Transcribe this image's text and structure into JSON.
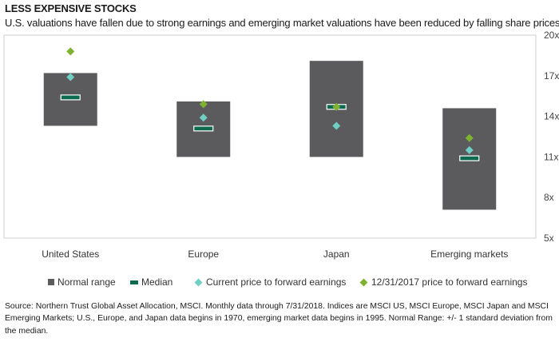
{
  "title": "LESS EXPENSIVE STOCKS",
  "subtitle": "U.S. valuations have fallen due to strong earnings and emerging market valuations have been reduced by falling share prices",
  "chart_data": {
    "type": "box",
    "categories": [
      "United States",
      "Europe",
      "Japan",
      "Emerging markets"
    ],
    "y_ticks": [
      "5x",
      "8x",
      "11x",
      "14x",
      "17x",
      "20x"
    ],
    "ylim": [
      5,
      20
    ],
    "grid": false,
    "legend_position": "bottom",
    "series": [
      {
        "name": "Normal range",
        "low": [
          13.3,
          11.0,
          11.0,
          7.1
        ],
        "high": [
          17.2,
          15.1,
          18.1,
          14.6
        ]
      },
      {
        "name": "Median",
        "values": [
          15.4,
          13.1,
          14.7,
          10.9
        ]
      },
      {
        "name": "Current price to forward earnings",
        "values": [
          16.9,
          13.9,
          13.3,
          11.5
        ]
      },
      {
        "name": "12/31/2017 price to forward earnings",
        "values": [
          18.8,
          14.9,
          14.7,
          12.4
        ]
      }
    ],
    "colors": {
      "range": "#5b5b5d",
      "median": "#0f6b4f",
      "current": "#6fcfc4",
      "dec2017": "#7fb231"
    }
  },
  "legend": {
    "range": "Normal range",
    "median": "Median",
    "current": "Current price to forward earnings",
    "dec2017": "12/31/2017 price to forward earnings"
  },
  "source": "Source: Northern Trust Global Asset Allocation, MSCI. Monthly data through 7/31/2018. Indices are MSCI US, MSCI Europe, MSCI Japan and MSCI Emerging Markets; U.S., Europe, and Japan data begins in 1970, emerging market data begins in 1995. Normal Range: +/- 1 standard deviation from the median."
}
